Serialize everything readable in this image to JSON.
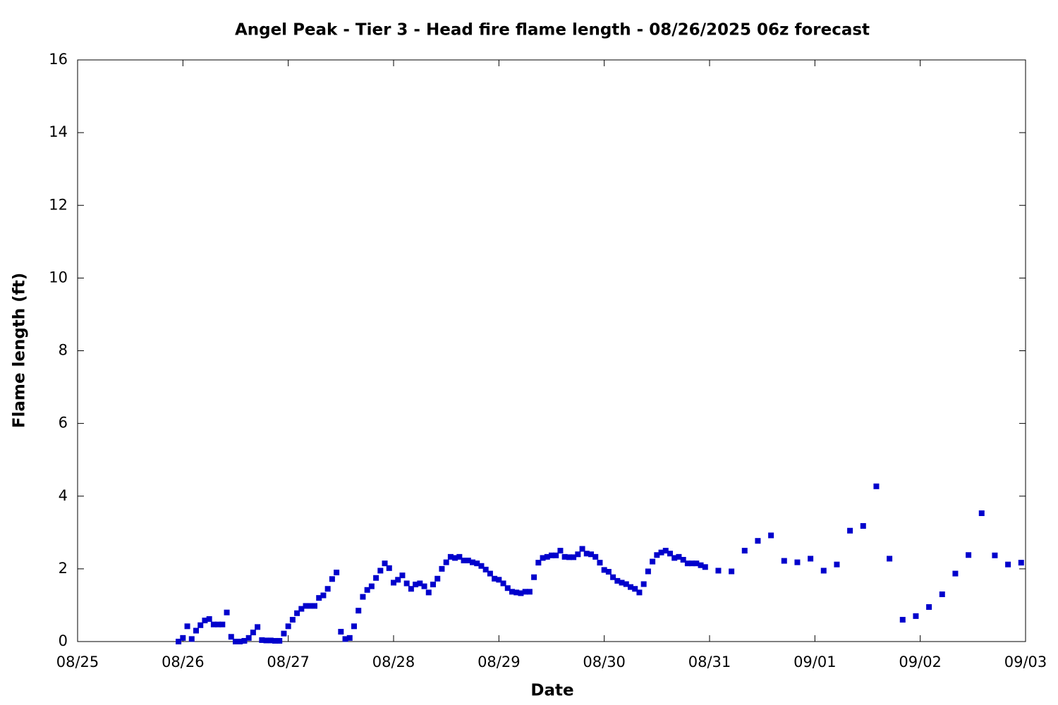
{
  "chart_data": {
    "type": "scatter",
    "title": "Angel Peak - Tier 3 - Head fire flame length - 08/26/2025 06z forecast",
    "xlabel": "Date",
    "ylabel": "Flame length (ft)",
    "color": "#0000cc",
    "xlim": [
      0,
      216
    ],
    "ylim": [
      0,
      16
    ],
    "xticks": [
      {
        "value": 0,
        "label": "08/25"
      },
      {
        "value": 24,
        "label": "08/26"
      },
      {
        "value": 48,
        "label": "08/27"
      },
      {
        "value": 72,
        "label": "08/28"
      },
      {
        "value": 96,
        "label": "08/29"
      },
      {
        "value": 120,
        "label": "08/30"
      },
      {
        "value": 144,
        "label": "08/31"
      },
      {
        "value": 168,
        "label": "09/01"
      },
      {
        "value": 192,
        "label": "09/02"
      },
      {
        "value": 216,
        "label": "09/03"
      }
    ],
    "yticks": [
      0,
      2,
      4,
      6,
      8,
      10,
      12,
      14,
      16
    ],
    "x": [
      23,
      24,
      25,
      26,
      27,
      28,
      29,
      30,
      31,
      32,
      33,
      34,
      35,
      36,
      37,
      38,
      39,
      40,
      41,
      42,
      43,
      44,
      45,
      46,
      47,
      48,
      49,
      50,
      51,
      52,
      53,
      54,
      55,
      56,
      57,
      58,
      59,
      60,
      61,
      62,
      63,
      64,
      65,
      66,
      67,
      68,
      69,
      70,
      71,
      72,
      73,
      74,
      75,
      76,
      77,
      78,
      79,
      80,
      81,
      82,
      83,
      84,
      85,
      86,
      87,
      88,
      89,
      90,
      91,
      92,
      93,
      94,
      95,
      96,
      97,
      98,
      99,
      100,
      101,
      102,
      103,
      104,
      105,
      106,
      107,
      108,
      109,
      110,
      111,
      112,
      113,
      114,
      115,
      116,
      117,
      118,
      119,
      120,
      121,
      122,
      123,
      124,
      125,
      126,
      127,
      128,
      129,
      130,
      131,
      132,
      133,
      134,
      135,
      136,
      137,
      138,
      139,
      140,
      141,
      142,
      143,
      146,
      149,
      152,
      155,
      158,
      161,
      164,
      167,
      170,
      173,
      176,
      179,
      182,
      185,
      188,
      191,
      194,
      197,
      200,
      203,
      206,
      209,
      212,
      215
    ],
    "values": [
      0.0,
      0.1,
      0.42,
      0.07,
      0.3,
      0.45,
      0.58,
      0.62,
      0.47,
      0.47,
      0.47,
      0.8,
      0.13,
      0.0,
      0.0,
      0.02,
      0.1,
      0.25,
      0.4,
      0.04,
      0.03,
      0.03,
      0.02,
      0.02,
      0.22,
      0.42,
      0.6,
      0.78,
      0.9,
      0.98,
      0.98,
      0.98,
      1.2,
      1.27,
      1.45,
      1.72,
      1.9,
      0.27,
      0.07,
      0.1,
      0.42,
      0.85,
      1.23,
      1.42,
      1.52,
      1.75,
      1.95,
      2.15,
      2.02,
      1.62,
      1.7,
      1.82,
      1.6,
      1.45,
      1.57,
      1.6,
      1.52,
      1.35,
      1.57,
      1.73,
      2.0,
      2.18,
      2.33,
      2.3,
      2.33,
      2.23,
      2.23,
      2.18,
      2.15,
      2.08,
      1.98,
      1.87,
      1.73,
      1.7,
      1.6,
      1.47,
      1.37,
      1.35,
      1.33,
      1.37,
      1.37,
      1.77,
      2.17,
      2.3,
      2.33,
      2.37,
      2.37,
      2.5,
      2.33,
      2.32,
      2.32,
      2.4,
      2.55,
      2.42,
      2.4,
      2.33,
      2.17,
      1.97,
      1.92,
      1.77,
      1.67,
      1.62,
      1.58,
      1.5,
      1.45,
      1.35,
      1.58,
      1.93,
      2.2,
      2.38,
      2.45,
      2.5,
      2.42,
      2.3,
      2.33,
      2.25,
      2.15,
      2.15,
      2.15,
      2.1,
      2.05,
      1.95,
      1.93,
      2.5,
      2.77,
      2.92,
      2.22,
      2.18,
      2.28,
      1.95,
      2.12,
      3.05,
      3.18,
      4.27,
      2.28,
      0.6,
      0.7,
      0.95,
      1.3,
      1.87,
      2.38,
      3.53,
      2.37,
      2.12,
      2.17
    ]
  }
}
